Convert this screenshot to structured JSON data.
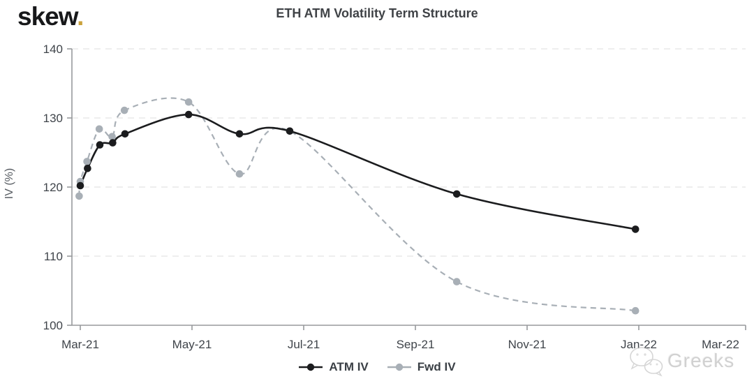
{
  "logo": {
    "text": "skew",
    "dot": ".",
    "dot_color": "#caa23c",
    "text_color": "#17181a"
  },
  "title": "ETH ATM Volatility Term Structure",
  "watermark": {
    "text": "Greeks",
    "icon": "wechat-icon"
  },
  "legend": {
    "items": [
      "ATM IV",
      "Fwd IV"
    ],
    "position": "bottom-center"
  },
  "chart_data": {
    "type": "line",
    "title": "ETH ATM Volatility Term Structure",
    "xlabel": "",
    "ylabel": "IV (%)",
    "ylim": [
      100,
      140
    ],
    "y_ticks": [
      100,
      110,
      120,
      130,
      140
    ],
    "x_tick_labels": [
      "Mar-21",
      "May-21",
      "Jul-21",
      "Sep-21",
      "Nov-21",
      "Jan-22",
      "Mar-22"
    ],
    "x_tick_months": [
      0,
      2,
      4,
      6,
      8,
      10,
      12
    ],
    "x_unit": "months since Mar-2021",
    "grid": "horizontal-dashed",
    "legend_position": "bottom-center",
    "background_color": "#ffffff",
    "axis_color": "#97999c",
    "gridline_color": "#e8e8e8",
    "tick_label_color": "#3f444a",
    "series": [
      {
        "name": "ATM IV",
        "color": "#1b1c1e",
        "line_style": "solid",
        "marker": "circle",
        "points": [
          [
            0.0,
            120.2
          ],
          [
            0.13,
            122.7
          ],
          [
            0.35,
            126.1
          ],
          [
            0.58,
            126.4
          ],
          [
            0.8,
            127.7
          ],
          [
            1.94,
            130.5
          ],
          [
            2.85,
            127.7
          ],
          [
            3.75,
            128.1
          ],
          [
            6.74,
            119.0
          ],
          [
            9.94,
            113.9
          ]
        ]
      },
      {
        "name": "Fwd IV",
        "color": "#a8afb6",
        "line_style": "dashed",
        "marker": "circle",
        "points": [
          [
            -0.02,
            118.7
          ],
          [
            0.0,
            120.8
          ],
          [
            0.12,
            123.7
          ],
          [
            0.34,
            128.4
          ],
          [
            0.57,
            127.3
          ],
          [
            0.79,
            131.1
          ],
          [
            1.94,
            132.3
          ],
          [
            2.85,
            121.9
          ],
          [
            3.75,
            128.1
          ],
          [
            6.74,
            106.3
          ],
          [
            9.94,
            102.1
          ]
        ]
      }
    ]
  }
}
